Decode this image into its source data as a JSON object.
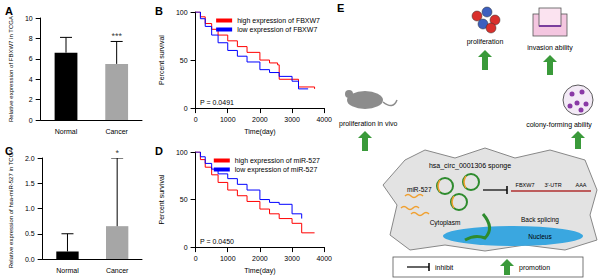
{
  "chart_data": [
    {
      "type": "bar",
      "title": "A",
      "ylabel": "Relative expression of FBXW7 in TCGA",
      "categories": [
        "Normal",
        "Cancer"
      ],
      "values": [
        6.6,
        5.5
      ],
      "errors": [
        1.5,
        2.2
      ],
      "colors": [
        "#000000",
        "#a6a6a6"
      ],
      "ylim": [
        0,
        10
      ],
      "yticks": [
        0,
        2,
        4,
        6,
        8,
        10
      ],
      "grid": false,
      "annotations": [
        {
          "category": "Cancer",
          "text": "***"
        }
      ]
    },
    {
      "type": "line",
      "title": "B",
      "xlabel": "Time(day)",
      "ylabel": "Percent survival",
      "xlim": [
        0,
        4000
      ],
      "xticks": [
        0,
        1000,
        2000,
        3000,
        4000
      ],
      "ylim": [
        0,
        100
      ],
      "yticks": [
        0,
        50,
        100
      ],
      "grid": false,
      "legend": "upper right",
      "series": [
        {
          "name": "high expression of FBXW7",
          "color": "#ff0000",
          "line_style": "step",
          "x": [
            0,
            150,
            300,
            500,
            700,
            1000,
            1300,
            1600,
            2000,
            2300,
            2550,
            2600,
            3000,
            3200,
            3700
          ],
          "values": [
            100,
            95,
            88,
            82,
            76,
            70,
            64,
            58,
            50,
            47,
            45,
            30,
            30,
            22,
            20
          ]
        },
        {
          "name": "low expression of FBXW7",
          "color": "#0000ff",
          "line_style": "step",
          "x": [
            0,
            150,
            300,
            500,
            700,
            1000,
            1300,
            1600,
            2000,
            2300,
            2600,
            3000,
            3200,
            3500
          ],
          "values": [
            100,
            93,
            85,
            76,
            68,
            60,
            54,
            48,
            40,
            37,
            33,
            28,
            20,
            20
          ]
        }
      ],
      "annotations": [
        {
          "text": "P = 0.0491"
        }
      ]
    },
    {
      "type": "bar",
      "title": "C",
      "ylabel": "Relative expression of hsa-miR-527 in TCGA",
      "categories": [
        "Normal",
        "Cancer"
      ],
      "values": [
        0.15,
        0.65
      ],
      "errors": [
        0.35,
        1.35
      ],
      "colors": [
        "#000000",
        "#a6a6a6"
      ],
      "ylim": [
        0,
        2
      ],
      "yticks": [
        {
          "value": 0,
          "label": "0.0"
        },
        {
          "value": 0.5,
          "label": "0.5"
        },
        {
          "value": 1,
          "label": "1.0"
        },
        {
          "value": 1.5,
          "label": "1.5"
        },
        {
          "value": 2,
          "label": "2.0"
        }
      ],
      "grid": false,
      "annotations": [
        {
          "category": "Cancer",
          "text": "*"
        }
      ]
    },
    {
      "type": "line",
      "title": "D",
      "xlabel": "Time(day)",
      "ylabel": "Percent survival",
      "xlim": [
        0,
        4000
      ],
      "xticks": [
        0,
        1000,
        2000,
        3000,
        4000
      ],
      "ylim": [
        0,
        100
      ],
      "yticks": [
        0,
        50,
        100
      ],
      "grid": false,
      "legend": "upper right",
      "series": [
        {
          "name": "high expression of miR-527",
          "color": "#ff0000",
          "line_style": "step",
          "x": [
            0,
            150,
            300,
            500,
            700,
            1000,
            1300,
            1600,
            2000,
            2300,
            2600,
            3000,
            3300,
            3700
          ],
          "values": [
            100,
            92,
            84,
            76,
            68,
            60,
            54,
            48,
            40,
            35,
            30,
            25,
            15,
            15
          ]
        },
        {
          "name": "low expression of miR-527",
          "color": "#0000ff",
          "line_style": "step",
          "x": [
            0,
            150,
            300,
            500,
            700,
            1000,
            1300,
            1600,
            2000,
            2300,
            2600,
            3000,
            3300
          ],
          "values": [
            100,
            95,
            88,
            82,
            77,
            72,
            66,
            60,
            50,
            47,
            45,
            35,
            30
          ]
        }
      ],
      "annotations": [
        {
          "text": "P = 0.0450"
        }
      ]
    }
  ],
  "diagram": {
    "title": "E",
    "outcomes": {
      "proliferation": "proliferation",
      "invasion": "invasion ability",
      "colony": "colony-forming ability",
      "in_vivo": "proliferation in vivo"
    },
    "sponge": "hsa_circ_0001306 sponge",
    "mirna": "miR-527",
    "mrna": [
      "FBXW7",
      "3'-UTR",
      "AAA"
    ],
    "cytoplasm": "Cytoplasm",
    "nucleus": "Nucleus",
    "process": "Back splicing",
    "legend": {
      "inhibit": "inhibit",
      "promotion": "promotion"
    }
  }
}
